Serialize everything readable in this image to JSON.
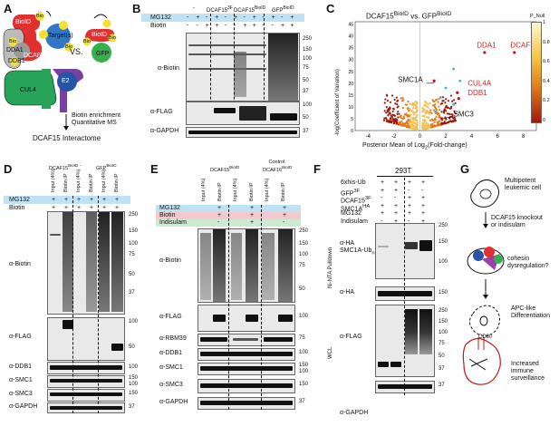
{
  "panels": {
    "A": "A",
    "B": "B",
    "C": "C",
    "D": "D",
    "E": "E",
    "F": "F",
    "G": "G"
  },
  "panelA": {
    "bioid": "BioID",
    "targets": "Target(s)",
    "dcaf15": "DCAF15",
    "dda1": "DDA1",
    "ddb1": "DDB1",
    "cul4": "CUL4",
    "e2": "E2",
    "bio": "Bio",
    "vs": "VS.",
    "bioid2": "BioID",
    "gfp": "GFP",
    "arrow_text": "Biotin enrichment\nQuantitative MS",
    "result": "DCAF15 Interactome"
  },
  "panelB": {
    "col_groups": [
      "-",
      "DCAF15<sup>3F</sup>",
      "DCAF15<sup>BioID</sup>",
      "GFP<sup>BioID</sup>"
    ],
    "row_mg132": "MG132",
    "row_biotin": "Biotin",
    "mg132": [
      "-",
      "+",
      "-",
      "+",
      "-",
      "+",
      "-",
      "+",
      "-",
      "+",
      "-",
      "+"
    ],
    "biotin": [
      "-",
      "-",
      "+",
      "+",
      "-",
      "-",
      "+",
      "+",
      "-",
      "-",
      "+",
      "+"
    ],
    "blots": [
      "α-Biotin",
      "α-FLAG",
      "α-GAPDH"
    ],
    "ticks_biotin": [
      "250",
      "150",
      "100",
      "75",
      "50",
      "37"
    ],
    "ticks_flag": [
      "100",
      "50"
    ],
    "ticks_gapdh": [
      "37"
    ]
  },
  "panelC": {
    "title": "DCAF15<sup>BioID</sup> vs. GFP<sup>BioID</sup>",
    "ylabel": "-log(Coefficient of Variation)",
    "xlabel": "Posterior Mean of Log<sub>2</sub>(Fold-change)",
    "xticks": [
      "-4",
      "-2",
      "0",
      "2",
      "4",
      "6",
      "8"
    ],
    "yticks": [
      "0",
      "5",
      "10",
      "15",
      "20",
      "25",
      "30",
      "35",
      "40",
      "45"
    ],
    "labels_red": [
      "DDA1",
      "DCAF15",
      "CUL4A",
      "DDB1"
    ],
    "labels_black": [
      "SMC1A",
      "SMC3"
    ],
    "legend_title": "P_Null",
    "legend_ticks": [
      "1",
      "0.8",
      "0.6",
      "0.4",
      "0.2",
      "0"
    ]
  },
  "panelD": {
    "col_groups": [
      "DCAF15<sup>BioID</sup>",
      "-",
      "GFP<sup>BioID</sup>"
    ],
    "cols": [
      "Input (4%)",
      "Biotin IP",
      "Input (4%)",
      "Biotin IP",
      "Input (4%)",
      "Biotin IP"
    ],
    "row_mg132": "MG132",
    "row_biotin": "Biotin",
    "vals": [
      "+",
      "+",
      "+",
      "+",
      "+",
      "+"
    ],
    "blots": [
      "α-Biotin",
      "α-FLAG",
      "α-DDB1",
      "α-SMC1",
      "α-SMC3",
      "α-GAPDH"
    ],
    "ticks_biotin": [
      "250",
      "150",
      "100",
      "75",
      "50",
      "37"
    ],
    "ticks_flag": [
      "100",
      "50"
    ],
    "ticks_ddb1": [
      "100"
    ],
    "ticks_smc1": [
      "150",
      "100"
    ],
    "ticks_smc3": [
      "150"
    ],
    "ticks_gapdh": [
      "37"
    ]
  },
  "panelE": {
    "col_groups": [
      "DCAF15<sup>BioID</sup>",
      "Control:\nDCAF16<sup>BioID</sup>"
    ],
    "cols": [
      "Input (4%)",
      "Biotin IP",
      "Input (4%)",
      "Biotin IP",
      "Input (4%)",
      "Biotin IP"
    ],
    "row_mg132": "MG132",
    "row_biotin": "Biotin",
    "row_indisulam": "Indisulam",
    "mg132": [
      "+",
      "+",
      "+"
    ],
    "biotin": [
      "+",
      "+",
      "+"
    ],
    "indisulam": [
      "-",
      "+",
      "-"
    ],
    "blots": [
      "α-Biotin",
      "α-FLAG",
      "α-RBM39",
      "α-DDB1",
      "α-SMC1",
      "α-SMC3",
      "α-GAPDH"
    ],
    "ticks_biotin": [
      "250",
      "150",
      "100",
      "75",
      "50"
    ],
    "ticks_flag": [
      "100"
    ],
    "ticks_rbm39": [
      "75"
    ],
    "ticks_ddb1": [
      "100"
    ],
    "ticks_smc1": [
      "150",
      "100"
    ],
    "ticks_smc3": [
      "150"
    ],
    "ticks_gapdh": [
      "37"
    ]
  },
  "panelF": {
    "cell_line": "293T",
    "rows": [
      "6xhis-Ub",
      "GFP<sup>3F</sup>",
      "DCAF15<sup>3F</sup>",
      "SMC1A<sup>HA</sup>",
      "MG132",
      "Indisulam"
    ],
    "vals": [
      [
        "+",
        "+",
        "+",
        "+"
      ],
      [
        "+",
        "+",
        "-",
        "-"
      ],
      [
        "-",
        "-",
        "+",
        "+"
      ],
      [
        "+",
        "+",
        "+",
        "+"
      ],
      [
        "+",
        "+",
        "+",
        "+"
      ],
      [
        "-",
        "+",
        "-",
        "+"
      ]
    ],
    "side_pulldown": "Ni-NTA Pulldown",
    "side_wcl": "WCL",
    "blots": [
      "α-HA\nSMC1A-Ub<sub>n</sub>",
      "α-HA",
      "α-FLAG",
      "α-GAPDH"
    ],
    "ticks_ha_ub": [
      "250",
      "150",
      "100"
    ],
    "ticks_ha": [
      "150"
    ],
    "ticks_flag": [
      "250",
      "150",
      "100",
      "75",
      "50",
      "37"
    ],
    "ticks_gapdh": [
      "37"
    ]
  },
  "panelG": {
    "t1": "Multipotent\nleukemic cell",
    "t2": "DCAF15 knockout\nor indisulam",
    "t3": "cohesin\ndysregulation?",
    "t4": "APC-like\nDifferentiation",
    "cd80": "CD80",
    "t5": "Increased\nimmune\nsurveillance"
  }
}
